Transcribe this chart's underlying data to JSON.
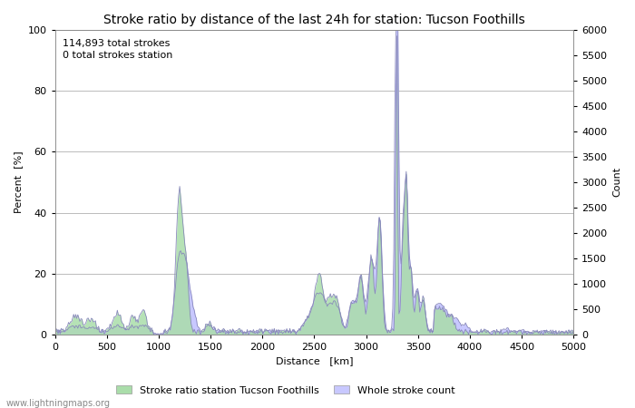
{
  "title": "Stroke ratio by distance of the last 24h for station: Tucson Foothills",
  "xlabel": "Distance   [km]",
  "ylabel_left": "Percent  [%]",
  "ylabel_right": "Count",
  "annotation": "114,893 total strokes\n0 total strokes station",
  "xlim": [
    0,
    5000
  ],
  "ylim_left": [
    0,
    100
  ],
  "ylim_right": [
    0,
    6000
  ],
  "xticks": [
    0,
    500,
    1000,
    1500,
    2000,
    2500,
    3000,
    3500,
    4000,
    4500,
    5000
  ],
  "yticks_left": [
    0,
    20,
    40,
    60,
    80,
    100
  ],
  "yticks_right": [
    0,
    500,
    1000,
    1500,
    2000,
    2500,
    3000,
    3500,
    4000,
    4500,
    5000,
    5500,
    6000
  ],
  "legend_labels": [
    "Stroke ratio station Tucson Foothills",
    "Whole stroke count"
  ],
  "stroke_ratio_color": "#aaddaa",
  "stroke_count_color": "#c8c8ff",
  "line_color": "#8888bb",
  "bg_color": "#ffffff",
  "grid_color": "#bbbbbb",
  "watermark": "www.lightningmaps.org",
  "title_fontsize": 10,
  "label_fontsize": 8,
  "tick_fontsize": 8,
  "annotation_fontsize": 8
}
